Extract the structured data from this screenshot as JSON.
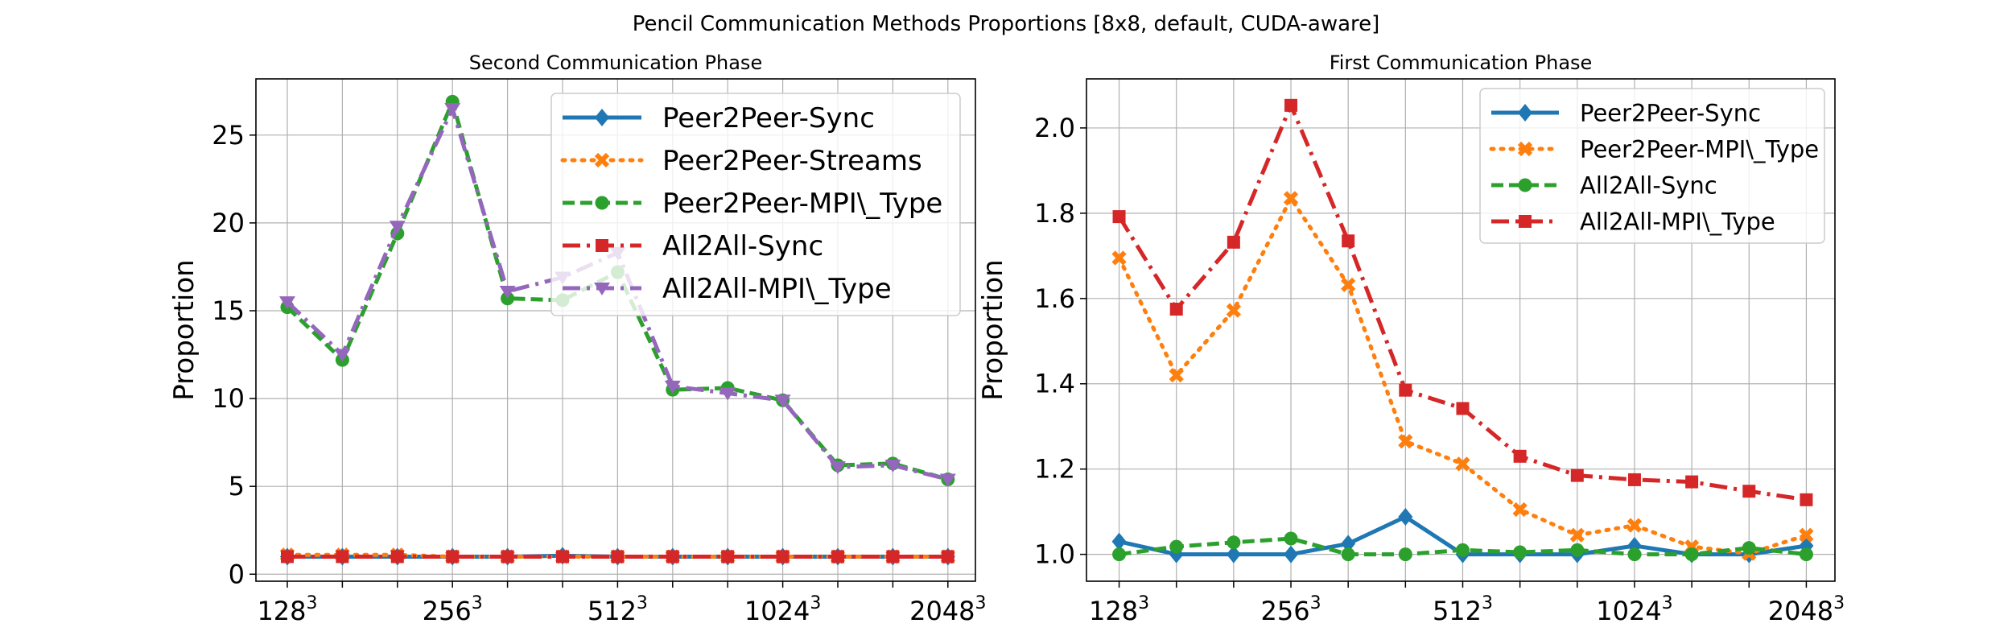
{
  "figure": {
    "title": "Pencil Communication Methods Proportions [8x8, default, CUDA-aware]"
  },
  "chart_data": [
    {
      "type": "line",
      "title": "Second Communication Phase",
      "xlabel": "",
      "ylabel": "Proportion",
      "x": [
        0,
        1,
        2,
        3,
        4,
        5,
        6,
        7,
        8,
        9,
        10,
        11,
        12
      ],
      "x_tick_labels": [
        {
          "x": 0,
          "base": "128",
          "exp": "3"
        },
        {
          "x": 3,
          "base": "256",
          "exp": "3"
        },
        {
          "x": 6,
          "base": "512",
          "exp": "3"
        },
        {
          "x": 9,
          "base": "1024",
          "exp": "3"
        },
        {
          "x": 12,
          "base": "2048",
          "exp": "3"
        }
      ],
      "y_ticks": [
        0,
        5,
        10,
        15,
        20,
        25
      ],
      "ylim": [
        -0.4,
        28.2
      ],
      "grid": true,
      "legend_position": "top-right",
      "series": [
        {
          "name": "Peer2Peer-Sync",
          "color": "#1f77b4",
          "dash": "solid",
          "marker": "diamond",
          "values": [
            1.0,
            1.0,
            1.0,
            1.0,
            1.0,
            1.05,
            1.0,
            1.0,
            1.0,
            1.0,
            1.0,
            1.0,
            1.0
          ]
        },
        {
          "name": "Peer2Peer-Streams",
          "color": "#ff7f0e",
          "dash": "dotted",
          "marker": "x",
          "values": [
            1.1,
            1.1,
            1.1,
            1.0,
            1.0,
            1.0,
            1.0,
            1.0,
            1.0,
            1.0,
            1.0,
            1.0,
            1.0
          ]
        },
        {
          "name": "Peer2Peer-MPI\\_Type",
          "color": "#2ca02c",
          "dash": "dashed",
          "marker": "circle",
          "values": [
            15.2,
            12.2,
            19.4,
            26.9,
            15.7,
            15.6,
            17.2,
            10.5,
            10.6,
            9.9,
            6.2,
            6.3,
            5.4
          ]
        },
        {
          "name": "All2All-Sync",
          "color": "#d62728",
          "dash": "dashdot",
          "marker": "square",
          "values": [
            1.0,
            1.0,
            1.0,
            1.0,
            1.0,
            1.0,
            1.0,
            1.0,
            1.0,
            1.0,
            1.0,
            1.0,
            1.0
          ]
        },
        {
          "name": "All2All-MPI\\_Type",
          "color": "#9467bd",
          "dash": "dashdot",
          "marker": "triangle-down",
          "values": [
            15.5,
            12.5,
            19.8,
            26.5,
            16.1,
            16.9,
            18.3,
            10.7,
            10.3,
            9.9,
            6.1,
            6.2,
            5.4
          ]
        }
      ]
    },
    {
      "type": "line",
      "title": "First Communication Phase",
      "xlabel": "",
      "ylabel": "Proportion",
      "x": [
        0,
        1,
        2,
        3,
        4,
        5,
        6,
        7,
        8,
        9,
        10,
        11,
        12
      ],
      "x_tick_labels": [
        {
          "x": 0,
          "base": "128",
          "exp": "3"
        },
        {
          "x": 3,
          "base": "256",
          "exp": "3"
        },
        {
          "x": 6,
          "base": "512",
          "exp": "3"
        },
        {
          "x": 9,
          "base": "1024",
          "exp": "3"
        },
        {
          "x": 12,
          "base": "2048",
          "exp": "3"
        }
      ],
      "y_ticks": [
        1.0,
        1.2,
        1.4,
        1.6,
        1.8,
        2.0
      ],
      "y_tick_labels": [
        "1.0",
        "1.2",
        "1.4",
        "1.6",
        "1.8",
        "2.0"
      ],
      "ylim": [
        0.937,
        2.115
      ],
      "grid": true,
      "legend_position": "top-right",
      "series": [
        {
          "name": "Peer2Peer-Sync",
          "color": "#1f77b4",
          "dash": "solid",
          "marker": "diamond",
          "values": [
            1.03,
            1.0,
            1.0,
            1.0,
            1.025,
            1.088,
            1.0,
            1.0,
            1.0,
            1.02,
            1.0,
            1.0,
            1.02
          ]
        },
        {
          "name": "Peer2Peer-MPI\\_Type",
          "color": "#ff7f0e",
          "dash": "dotted",
          "marker": "x",
          "values": [
            1.695,
            1.42,
            1.572,
            1.835,
            1.632,
            1.265,
            1.212,
            1.105,
            1.045,
            1.068,
            1.018,
            1.002,
            1.045
          ]
        },
        {
          "name": "All2All-Sync",
          "color": "#2ca02c",
          "dash": "dashed",
          "marker": "circle",
          "values": [
            1.0,
            1.018,
            1.028,
            1.037,
            1.0,
            1.0,
            1.01,
            1.005,
            1.01,
            1.0,
            1.0,
            1.015,
            1.0
          ]
        },
        {
          "name": "All2All-MPI\\_Type",
          "color": "#d62728",
          "dash": "dashdot",
          "marker": "square",
          "values": [
            1.792,
            1.575,
            1.732,
            2.053,
            1.735,
            1.385,
            1.342,
            1.23,
            1.185,
            1.175,
            1.17,
            1.148,
            1.128
          ]
        }
      ]
    }
  ]
}
